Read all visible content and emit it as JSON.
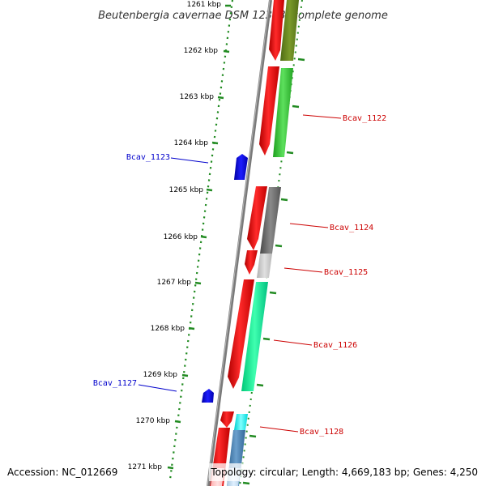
{
  "title": "Beutenbergia cavernae DSM 12333, complete genome",
  "footer": {
    "accession": "Accession: NC_012669",
    "topology": "Topology: circular; Length: 4,669,183 bp; Genes: 4,250"
  },
  "scale_ticks": [
    "1261 kbp",
    "1262 kbp",
    "1263 kbp",
    "1264 kbp",
    "1265 kbp",
    "1266 kbp",
    "1267 kbp",
    "1268 kbp",
    "1269 kbp",
    "1270 kbp",
    "1271 kbp"
  ],
  "gene_labels": [
    {
      "text": "Bcav_1122",
      "color": "#cc0000"
    },
    {
      "text": "Bcav_1123",
      "color": "#0000cc"
    },
    {
      "text": "Bcav_1124",
      "color": "#cc0000"
    },
    {
      "text": "Bcav_1125",
      "color": "#cc0000"
    },
    {
      "text": "Bcav_1126",
      "color": "#cc0000"
    },
    {
      "text": "Bcav_1127",
      "color": "#0000cc"
    },
    {
      "text": "Bcav_1128",
      "color": "#cc0000"
    }
  ],
  "colors": {
    "backbone": "#808080",
    "tick_green": "#228b22",
    "cds_red": "#ff0000",
    "forward_blue": "#0000ff",
    "olive": "#6b8e23",
    "green": "#32cd32",
    "gray": "#696969",
    "light_gray": "#c8c8c8",
    "spring_green": "#00fa9a",
    "cyan": "#00ffff",
    "steel_blue": "#4682b4"
  }
}
